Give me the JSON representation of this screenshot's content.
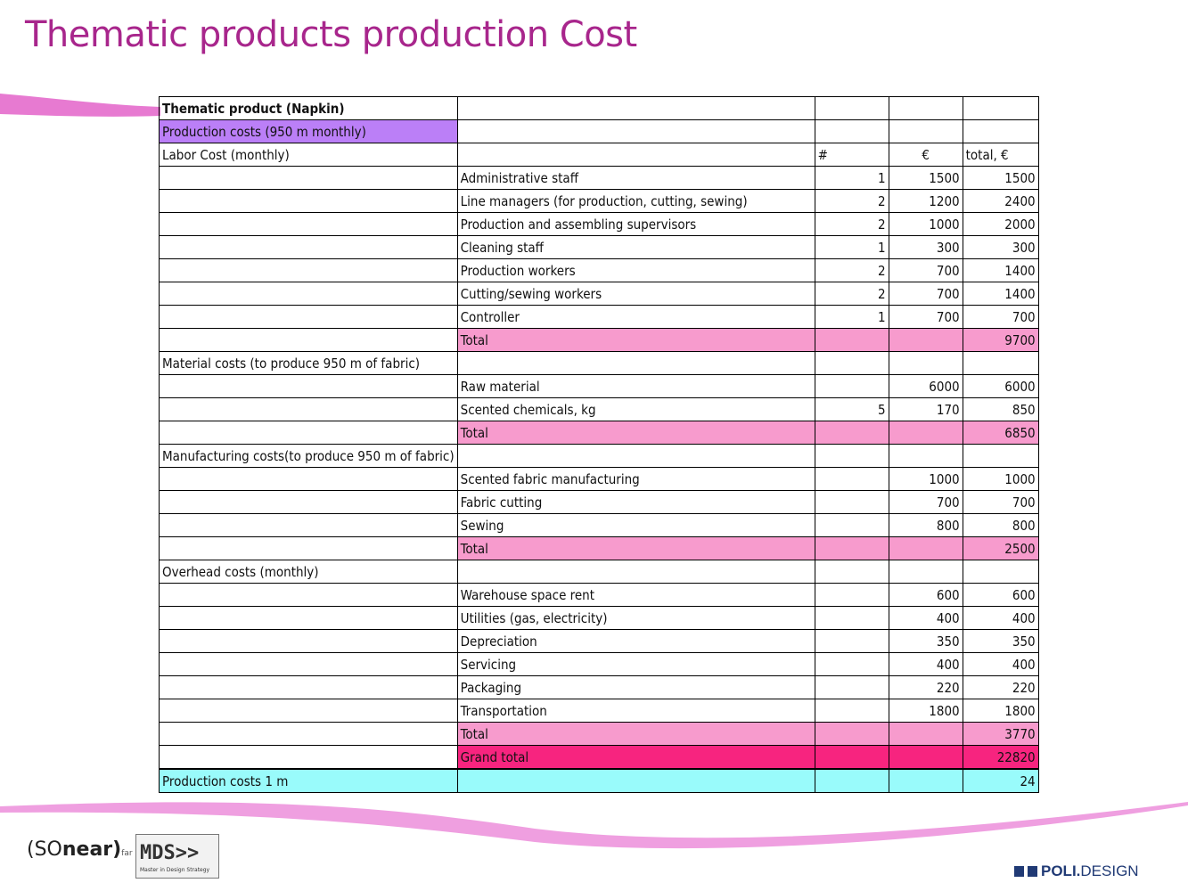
{
  "title": "Thematic products production Cost",
  "colors": {
    "title": "#a8268c",
    "production_costs_highlight": "#bb7ff7",
    "section_total": "#f79bcd",
    "grand_total": "#f7247f",
    "per_meter_row": "#99fbfb",
    "swoosh": "#e77ad1"
  },
  "table": {
    "header_title": "Thematic product (Napkin)",
    "header_subtitle": "Production costs (950 m monthly)",
    "col_count_label": "#",
    "col_price_label": "€",
    "col_total_label": "total, €",
    "sections": [
      {
        "label": "Labor Cost (monthly)",
        "show_columns": true,
        "items": [
          {
            "name": "Administrative staff",
            "count": "1",
            "price": "1500",
            "total": "1500"
          },
          {
            "name": "Line managers (for production, cutting, sewing)",
            "count": "2",
            "price": "1200",
            "total": "2400"
          },
          {
            "name": "Production and assembling supervisors",
            "count": "2",
            "price": "1000",
            "total": "2000"
          },
          {
            "name": "Cleaning staff",
            "count": "1",
            "price": "300",
            "total": "300"
          },
          {
            "name": "Production workers",
            "count": "2",
            "price": "700",
            "total": "1400"
          },
          {
            "name": "Cutting/sewing workers",
            "count": "2",
            "price": "700",
            "total": "1400"
          },
          {
            "name": "Controller",
            "count": "1",
            "price": "700",
            "total": "700"
          }
        ],
        "total_label": "Total",
        "total_value": "9700"
      },
      {
        "label": "Material costs (to produce 950 m of fabric)",
        "show_columns": false,
        "items": [
          {
            "name": "Raw material",
            "count": "",
            "price": "6000",
            "total": "6000"
          },
          {
            "name": "Scented chemicals, kg",
            "count": "5",
            "price": "170",
            "total": "850"
          }
        ],
        "total_label": "Total",
        "total_value": "6850"
      },
      {
        "label": "Manufacturing costs(to produce 950 m of fabric)",
        "show_columns": false,
        "items": [
          {
            "name": "Scented fabric manufacturing",
            "count": "",
            "price": "1000",
            "total": "1000"
          },
          {
            "name": "Fabric cutting",
            "count": "",
            "price": "700",
            "total": "700"
          },
          {
            "name": "Sewing",
            "count": "",
            "price": "800",
            "total": "800"
          }
        ],
        "total_label": "Total",
        "total_value": "2500"
      },
      {
        "label": "Overhead costs (monthly)",
        "show_columns": false,
        "items": [
          {
            "name": "Warehouse space rent",
            "count": "",
            "price": "600",
            "total": "600"
          },
          {
            "name": "Utilities (gas, electricity)",
            "count": "",
            "price": "400",
            "total": "400"
          },
          {
            "name": "Depreciation",
            "count": "",
            "price": "350",
            "total": "350"
          },
          {
            "name": "Servicing",
            "count": "",
            "price": "400",
            "total": "400"
          },
          {
            "name": "Packaging",
            "count": "",
            "price": "220",
            "total": "220"
          },
          {
            "name": "Transportation",
            "count": "",
            "price": "1800",
            "total": "1800"
          }
        ],
        "total_label": "Total",
        "total_value": "3770"
      }
    ],
    "grand_total_label": "Grand total",
    "grand_total_value": "22820",
    "per_meter_label": "Production costs 1 m",
    "per_meter_value": "24"
  },
  "footer": {
    "sonear_main": "(SO",
    "sonear_near": "near)",
    "sonear_far": "far",
    "mds_main": "MDS>>",
    "mds_sub": "Master in Design Strategy",
    "poli_bold": "POLI.",
    "poli_rest": "DESIGN"
  }
}
